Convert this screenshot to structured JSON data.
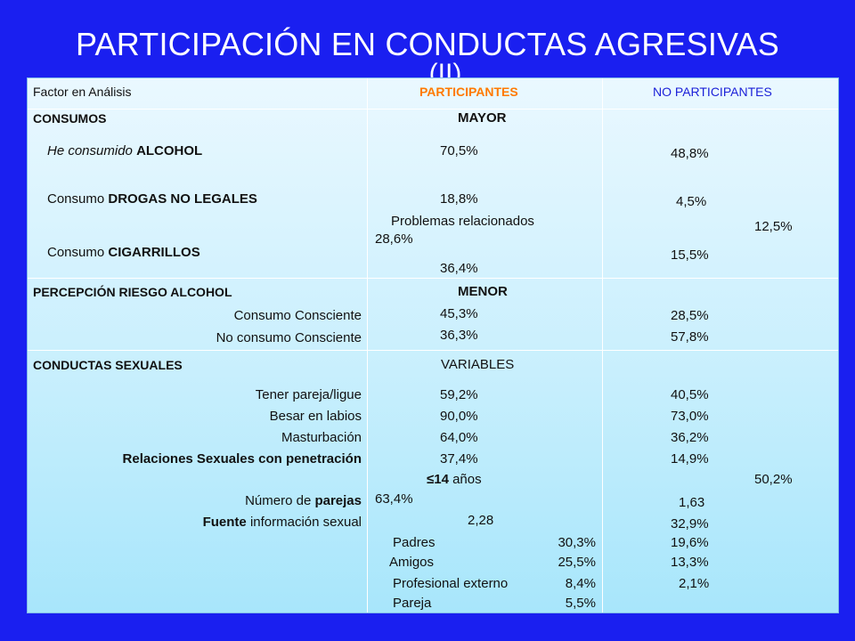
{
  "title": "PARTICIPACIÓN EN CONDUCTAS AGRESIVAS",
  "title_cont": "(II)",
  "header": {
    "col1": "Factor en Análisis",
    "col2": "PARTICIPANTES",
    "col3": "NO PARTICIPANTES"
  },
  "consumos": {
    "label": "CONSUMOS",
    "tag": "MAYOR",
    "alcohol": {
      "pre": "He consumido",
      "bold": "ALCOHOL",
      "part": "70,5%",
      "nopart": "48,8%"
    },
    "drogas": {
      "pre": "Consumo",
      "bold": "DROGAS NO LEGALES",
      "part": "18,8%",
      "nopart": "4,5%"
    },
    "problemas": {
      "label": "Problemas relacionados",
      "part": "28,6%",
      "nopart": "12,5%"
    },
    "cigarrillos": {
      "pre": "Consumo",
      "bold": "CIGARRILLOS",
      "part": "36,4%",
      "nopart": "15,5%"
    }
  },
  "percepcion": {
    "label": "PERCEPCIÓN RIESGO ALCOHOL",
    "tag": "MENOR",
    "consciente": {
      "label": "Consumo Consciente",
      "part": "45,3%",
      "nopart": "28,5%"
    },
    "no_consciente": {
      "label": "No consumo Consciente",
      "part": "36,3%",
      "nopart": "57,8%"
    }
  },
  "sexuales": {
    "label": "CONDUCTAS SEXUALES",
    "tag": "VARIABLES",
    "pareja": {
      "label": "Tener pareja/ligue",
      "part": "59,2%",
      "nopart": "40,5%"
    },
    "besar": {
      "label": "Besar en labios",
      "part": "90,0%",
      "nopart": "73,0%"
    },
    "masturbacion": {
      "label": "Masturbación",
      "part": "64,0%",
      "nopart": "36,2%"
    },
    "relaciones": {
      "label": "Relaciones Sexuales con penetración",
      "part": "37,4%",
      "nopart": "14,9%"
    },
    "edad": {
      "symbol": "≤14",
      "suffix": "años",
      "part": "63,4%",
      "nopart": "50,2%"
    },
    "num_parejas": {
      "pre": "Número de",
      "bold": "parejas",
      "part": "2,28",
      "nopart": "1,63"
    },
    "fuente": {
      "bold": "Fuente",
      "post": "información sexual",
      "nopart": "32,9%"
    },
    "fuentes": [
      {
        "label": "Padres",
        "part": "30,3%",
        "nopart": "19,6%"
      },
      {
        "label": "Amigos",
        "part": "25,5%",
        "nopart": "13,3%"
      },
      {
        "label": "Profesional externo",
        "part": "8,4%",
        "nopart": "2,1%"
      },
      {
        "label": "Pareja",
        "part": "5,5%"
      }
    ]
  }
}
